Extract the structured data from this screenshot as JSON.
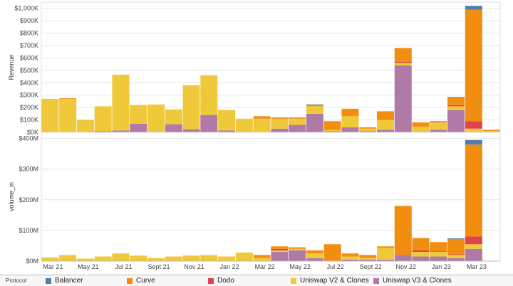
{
  "chart_data": [
    {
      "type": "bar",
      "stacked": true,
      "ylabel": "Revenue",
      "ylim": [
        0,
        1050000
      ],
      "yticks": [
        0,
        100000,
        200000,
        300000,
        400000,
        500000,
        600000,
        700000,
        800000,
        900000,
        1000000
      ],
      "ytick_labels": [
        "$0K",
        "$100K",
        "$200K",
        "$300K",
        "$400K",
        "$500K",
        "$600K",
        "$700K",
        "$800K",
        "$900K",
        "$1,000K"
      ],
      "grid": true,
      "series": [
        {
          "name": "Uniswap V3 & Clones",
          "values": [
            0,
            0,
            0,
            10000,
            15000,
            70000,
            5000,
            65000,
            25000,
            140000,
            15000,
            5000,
            0,
            30000,
            60000,
            150000,
            10000,
            40000,
            10000,
            20000,
            540000,
            5000,
            20000,
            180000,
            0,
            0
          ]
        },
        {
          "name": "Uniswap V2 & Clones",
          "values": [
            270000,
            270000,
            100000,
            200000,
            450000,
            150000,
            220000,
            120000,
            355000,
            320000,
            165000,
            105000,
            110000,
            80000,
            50000,
            60000,
            10000,
            90000,
            20000,
            80000,
            20000,
            40000,
            60000,
            30000,
            30000,
            10000
          ]
        },
        {
          "name": "Dodo",
          "values": [
            0,
            0,
            0,
            0,
            0,
            0,
            0,
            0,
            0,
            0,
            0,
            0,
            0,
            0,
            0,
            0,
            0,
            0,
            0,
            0,
            10000,
            0,
            5000,
            10000,
            60000,
            0
          ]
        },
        {
          "name": "Curve",
          "values": [
            0,
            5000,
            0,
            0,
            0,
            0,
            0,
            0,
            0,
            0,
            0,
            0,
            20000,
            10000,
            10000,
            10000,
            70000,
            60000,
            10000,
            70000,
            110000,
            35000,
            5000,
            60000,
            900000,
            10000
          ]
        },
        {
          "name": "Balancer",
          "values": [
            0,
            0,
            0,
            0,
            0,
            0,
            0,
            0,
            0,
            0,
            0,
            0,
            0,
            0,
            0,
            5000,
            0,
            0,
            0,
            0,
            0,
            0,
            0,
            5000,
            30000,
            0
          ]
        }
      ]
    },
    {
      "type": "bar",
      "stacked": true,
      "ylabel": "volume_in",
      "ylim": [
        0,
        420000000
      ],
      "yticks": [
        0,
        100000000,
        200000000,
        300000000,
        400000000
      ],
      "ytick_labels": [
        "$0M",
        "$100M",
        "$200M",
        "$300M",
        "$400M"
      ],
      "grid": true,
      "xtick_labels": [
        "Mar 21",
        "May 21",
        "Jul 21",
        "Sept 21",
        "Nov 21",
        "Jan 22",
        "Mar 22",
        "May 22",
        "Jul 22",
        "Sept 22",
        "Nov 22",
        "Jan 23",
        "Mar 23"
      ],
      "series": [
        {
          "name": "Uniswap V3 & Clones",
          "values": [
            0,
            0,
            0,
            0,
            0,
            0,
            0,
            0,
            0,
            0,
            0,
            0,
            0,
            30000000,
            35000000,
            10000000,
            0,
            5000000,
            5000000,
            5000000,
            20000000,
            15000000,
            15000000,
            10000000,
            40000000,
            0
          ]
        },
        {
          "name": "Uniswap V2 & Clones",
          "values": [
            12000000,
            20000000,
            8000000,
            15000000,
            25000000,
            18000000,
            10000000,
            15000000,
            18000000,
            20000000,
            15000000,
            28000000,
            10000000,
            5000000,
            5000000,
            15000000,
            0,
            10000000,
            5000000,
            38000000,
            0,
            15000000,
            15000000,
            10000000,
            15000000,
            0
          ]
        },
        {
          "name": "Dodo",
          "values": [
            0,
            0,
            0,
            0,
            0,
            0,
            0,
            0,
            0,
            0,
            0,
            0,
            0,
            5000000,
            0,
            0,
            0,
            0,
            0,
            0,
            0,
            5000000,
            2000000,
            2000000,
            25000000,
            0
          ]
        },
        {
          "name": "Curve",
          "values": [
            0,
            0,
            0,
            0,
            0,
            0,
            0,
            0,
            0,
            0,
            0,
            0,
            10000000,
            8000000,
            5000000,
            10000000,
            55000000,
            10000000,
            10000000,
            5000000,
            160000000,
            40000000,
            30000000,
            50000000,
            300000000,
            0
          ]
        },
        {
          "name": "Balancer",
          "values": [
            0,
            0,
            0,
            0,
            0,
            0,
            0,
            0,
            0,
            0,
            0,
            0,
            0,
            0,
            0,
            0,
            0,
            0,
            0,
            0,
            0,
            0,
            0,
            2000000,
            15000000,
            0
          ]
        }
      ]
    }
  ],
  "legend": {
    "title": "Protocol",
    "items": [
      {
        "name": "Balancer",
        "color": "#4f7fa8"
      },
      {
        "name": "Curve",
        "color": "#f28e0f"
      },
      {
        "name": "Dodo",
        "color": "#e0434d"
      },
      {
        "name": "Uniswap V2 & Clones",
        "color": "#f0c93a"
      },
      {
        "name": "Uniswap V3 & Clones",
        "color": "#b07aa6"
      }
    ]
  }
}
